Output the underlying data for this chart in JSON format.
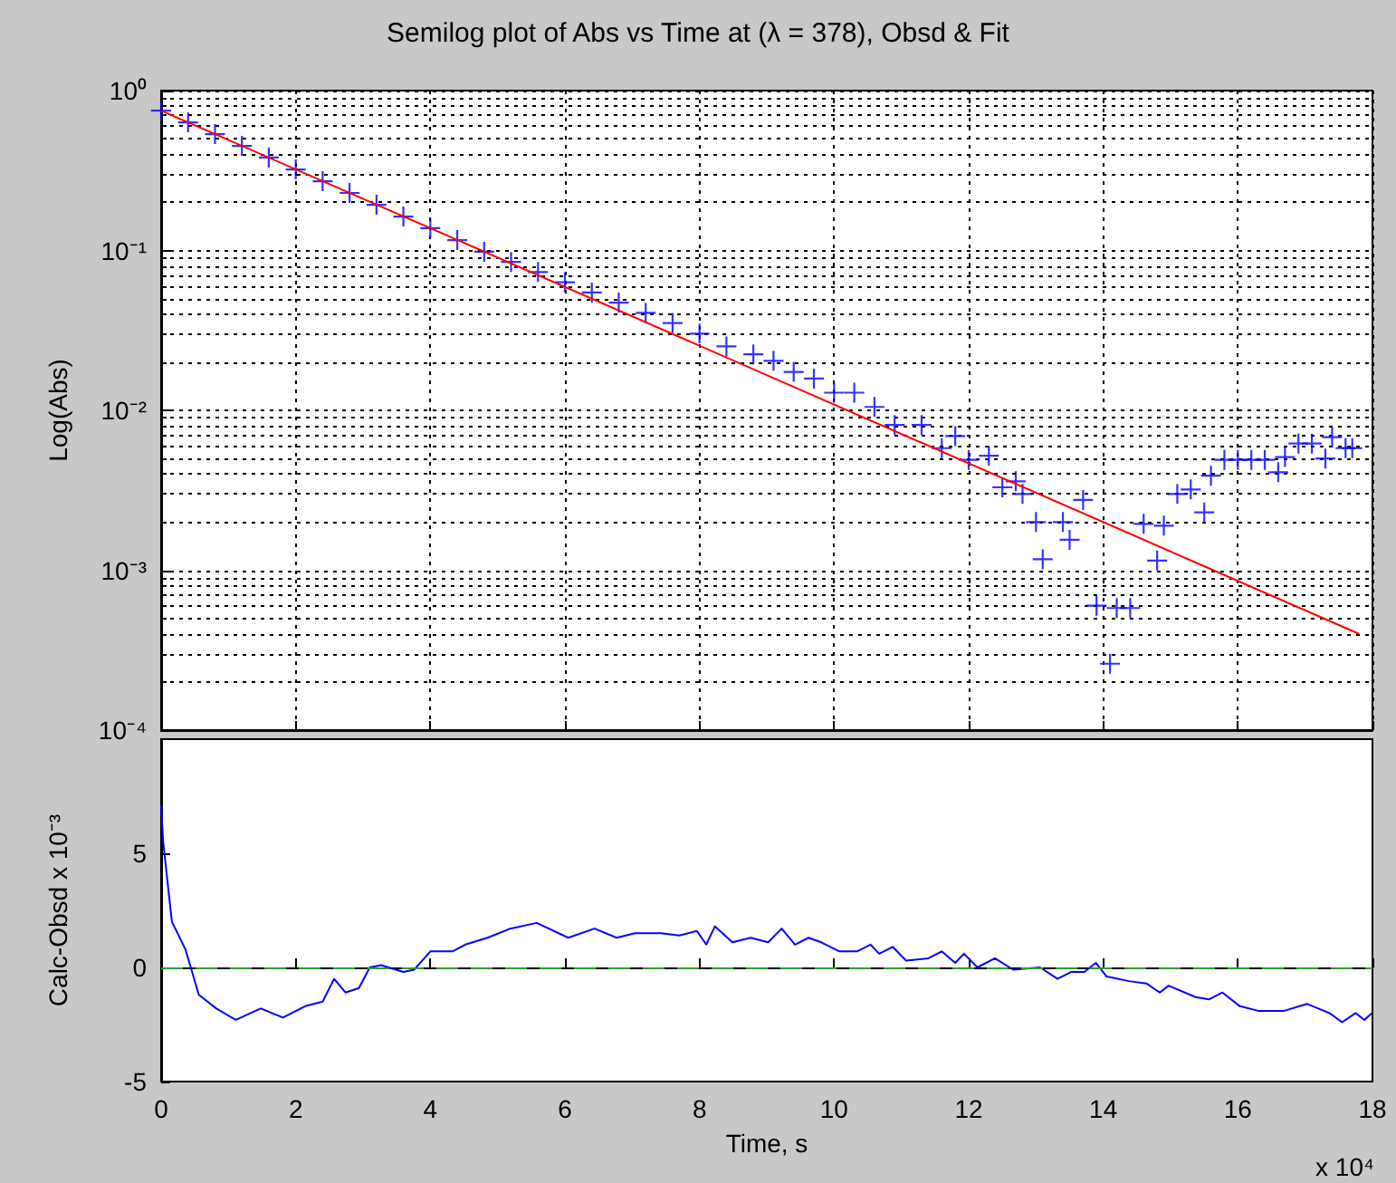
{
  "chart_data": [
    {
      "type": "scatter",
      "title": "Semilog plot of Abs vs Time at (λ = 378), Obsd & Fit",
      "ylabel": "Log(Abs)",
      "log": "y",
      "grid": true,
      "tick_labels": "y",
      "marker": "cross",
      "xlim": [
        0,
        18
      ],
      "xticks": [
        0,
        2,
        4,
        6,
        8,
        10,
        12,
        14,
        16,
        18
      ],
      "ylim": [
        0.0001,
        1
      ],
      "yticks": [
        {
          "value": 0.0001,
          "label": "10⁻⁴"
        },
        {
          "value": 0.001,
          "label": "10⁻³"
        },
        {
          "value": 0.01,
          "label": "10⁻²"
        },
        {
          "value": 0.1,
          "label": "10⁻¹"
        },
        {
          "value": 1,
          "label": "10⁰"
        }
      ],
      "x": [
        0,
        0.4,
        0.8,
        1.2,
        1.6,
        2.0,
        2.4,
        2.8,
        3.2,
        3.6,
        4.0,
        4.4,
        4.8,
        5.2,
        5.6,
        6.0,
        6.4,
        6.8,
        7.2,
        7.6,
        8.0,
        8.4,
        8.8,
        9.1,
        9.4,
        9.7,
        10.0,
        10.3,
        10.6,
        10.9,
        11.3,
        11.6,
        11.8,
        12.0,
        12.3,
        12.5,
        12.7,
        12.8,
        13.0,
        13.1,
        13.4,
        13.5,
        13.7,
        13.9,
        14.1,
        14.2,
        14.4,
        14.6,
        14.8,
        14.9,
        15.1,
        15.3,
        15.5,
        15.6,
        15.8,
        16.0,
        16.2,
        16.4,
        16.6,
        16.7,
        16.9,
        17.1,
        17.3,
        17.4,
        17.6,
        17.7
      ],
      "series": [
        {
          "color": "#0000ff",
          "values": [
            0.75,
            0.633,
            0.534,
            0.451,
            0.381,
            0.321,
            0.271,
            0.229,
            0.193,
            0.163,
            0.138,
            0.116,
            0.0982,
            0.0848,
            0.0733,
            0.0632,
            0.0546,
            0.0472,
            0.0407,
            0.0352,
            0.0302,
            0.0251,
            0.0224,
            0.0204,
            0.0174,
            0.0158,
            0.0129,
            0.0129,
            0.0105,
            0.0081,
            0.0081,
            0.0058,
            0.0069,
            0.0049,
            0.0052,
            0.0033,
            0.0036,
            0.003,
            0.002,
            0.00117,
            0.002,
            0.00155,
            0.00275,
            0.0006,
            0.00026,
            0.00058,
            0.00058,
            0.00195,
            0.00115,
            0.0019,
            0.003,
            0.0032,
            0.0023,
            0.0039,
            0.0049,
            0.0049,
            0.0049,
            0.0049,
            0.0041,
            0.0051,
            0.0062,
            0.0062,
            0.005,
            0.0068,
            0.0058,
            0.0058
          ]
        },
        {
          "type": "line",
          "color": "#ff0000",
          "marker": "none",
          "x": [
            0,
            17.8
          ],
          "values": [
            0.75,
            0.0004
          ]
        }
      ]
    },
    {
      "type": "line",
      "xlabel": "Time, s",
      "ylabel": "Calc-Obsd x 10⁻³",
      "marker": "none",
      "annotations": [
        "x 10⁴"
      ],
      "xlim": [
        0,
        18
      ],
      "xticks": [
        0,
        2,
        4,
        6,
        8,
        10,
        12,
        14,
        16,
        18
      ],
      "ylim": [
        -5,
        10
      ],
      "yticks": [
        -5,
        0,
        5
      ],
      "ref_lines": [
        {
          "axis": "y",
          "value": 0,
          "color": "#2ca02c",
          "line_style": "dashed"
        }
      ],
      "x": [
        0,
        0.03,
        0.16,
        0.36,
        0.56,
        0.82,
        1.11,
        1.48,
        1.81,
        2.14,
        2.4,
        2.57,
        2.74,
        2.94,
        3.1,
        3.27,
        3.6,
        3.76,
        4.0,
        4.33,
        4.52,
        4.85,
        5.19,
        5.58,
        6.05,
        6.44,
        6.77,
        7.04,
        7.43,
        7.7,
        7.96,
        8.1,
        8.23,
        8.49,
        8.76,
        9.02,
        9.22,
        9.42,
        9.62,
        9.81,
        10.08,
        10.34,
        10.54,
        10.67,
        10.87,
        11.07,
        11.4,
        11.6,
        11.8,
        11.93,
        12.13,
        12.39,
        12.66,
        13.06,
        13.32,
        13.52,
        13.72,
        13.89,
        14.05,
        14.38,
        14.64,
        14.84,
        14.97,
        15.37,
        15.57,
        15.77,
        16.03,
        16.3,
        16.69,
        17.03,
        17.36,
        17.55,
        17.75,
        17.88,
        17.99
      ],
      "series": [
        {
          "color": "#0000ff",
          "values": [
            7.1,
            5.5,
            2.0,
            0.8,
            -1.2,
            -1.8,
            -2.3,
            -1.8,
            -2.2,
            -1.7,
            -1.5,
            -0.5,
            -1.1,
            -0.9,
            0,
            0.1,
            -0.2,
            -0.1,
            0.7,
            0.7,
            1.0,
            1.3,
            1.7,
            1.95,
            1.3,
            1.7,
            1.3,
            1.5,
            1.5,
            1.4,
            1.6,
            1.0,
            1.8,
            1.1,
            1.3,
            1.1,
            1.7,
            1.0,
            1.3,
            1.1,
            0.7,
            0.7,
            1.0,
            0.6,
            0.9,
            0.3,
            0.4,
            0.7,
            0.2,
            0.6,
            0,
            0.4,
            -0.1,
            0,
            -0.5,
            -0.2,
            -0.2,
            0.2,
            -0.4,
            -0.6,
            -0.7,
            -1.1,
            -0.8,
            -1.3,
            -1.4,
            -1.1,
            -1.7,
            -1.9,
            -1.9,
            -1.6,
            -2.0,
            -2.4,
            -2.0,
            -2.3,
            -2.0
          ]
        }
      ]
    }
  ]
}
